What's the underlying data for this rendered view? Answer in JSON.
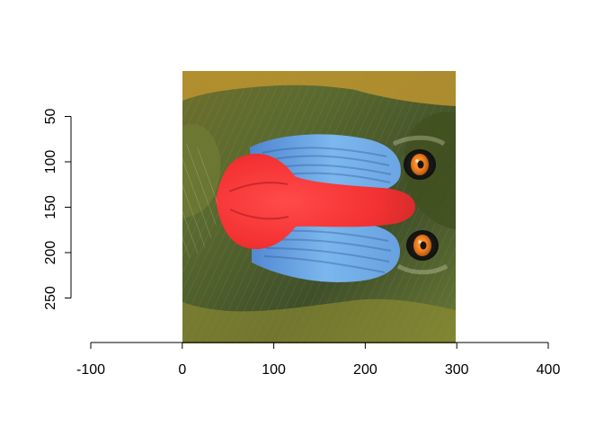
{
  "chart_data": {
    "type": "image",
    "title": "",
    "xlabel": "",
    "ylabel": "",
    "xlim": [
      -100,
      400
    ],
    "ylim": [
      0,
      300
    ],
    "x_ticks": [
      -100,
      0,
      100,
      200,
      300,
      400
    ],
    "y_ticks": [
      50,
      100,
      150,
      200,
      250
    ],
    "x_tick_labels": [
      "-100",
      "0",
      "100",
      "200",
      "300",
      "400"
    ],
    "y_tick_labels": [
      "50",
      "100",
      "150",
      "200",
      "250"
    ],
    "image_extent": {
      "x": [
        0,
        300
      ],
      "y": [
        0,
        300
      ]
    },
    "image_subject": "mandrill-face-rotated",
    "colors": {
      "axis": "#000000",
      "background": "#ffffff",
      "image_base": "#4a5a2a",
      "nose_red": "#f33a3a",
      "cheek_blue": "#6aa8e8",
      "fur_yellow": "#c7a33a",
      "eye_orange": "#e07a1a"
    }
  }
}
